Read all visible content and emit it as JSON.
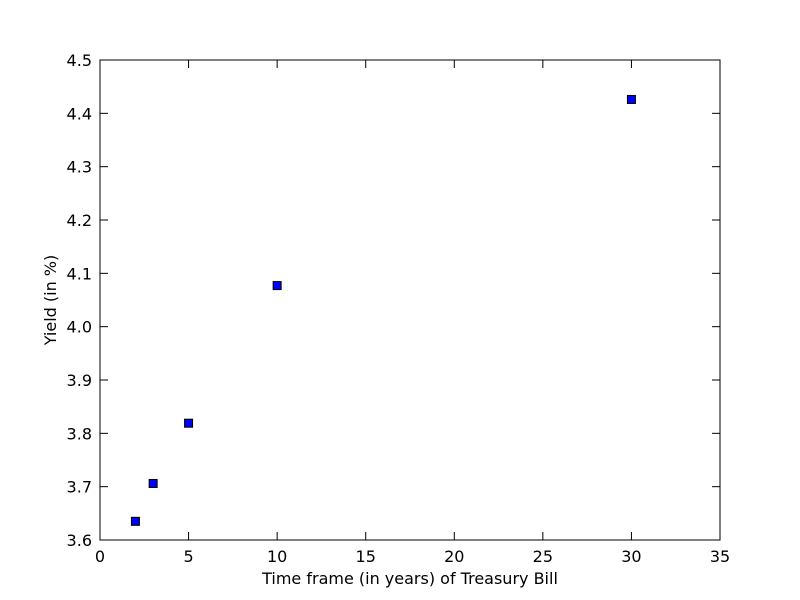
{
  "chart_data": {
    "type": "scatter",
    "title": "",
    "xlabel": "Time frame (in years) of Treasury Bill",
    "ylabel": "Yield (in %)",
    "xlim": [
      0,
      35
    ],
    "ylim": [
      3.6,
      4.5
    ],
    "xticks": [
      0,
      5,
      10,
      15,
      20,
      25,
      30,
      35
    ],
    "yticks": [
      3.6,
      3.7,
      3.8,
      3.9,
      4.0,
      4.1,
      4.2,
      4.3,
      4.4,
      4.5
    ],
    "xtick_labels": [
      "0",
      "5",
      "10",
      "15",
      "20",
      "25",
      "30",
      "35"
    ],
    "ytick_labels": [
      "3.6",
      "3.7",
      "3.8",
      "3.9",
      "4.0",
      "4.1",
      "4.2",
      "4.3",
      "4.4",
      "4.5"
    ],
    "grid": false,
    "marker": "square",
    "marker_color": "#0000ff",
    "marker_edge_color": "#000000",
    "series": [
      {
        "x": [
          2,
          3,
          5,
          10,
          30
        ],
        "y": [
          3.635,
          3.706,
          3.819,
          4.077,
          4.426
        ]
      }
    ]
  }
}
